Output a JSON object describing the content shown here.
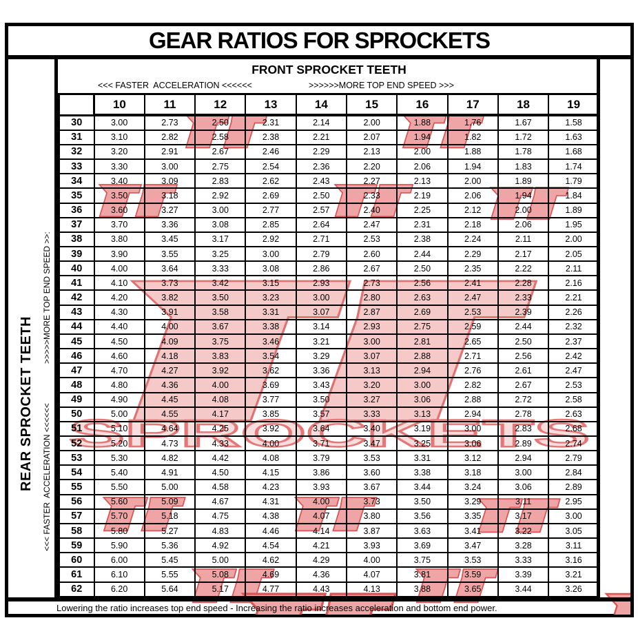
{
  "page": {
    "title": "GEAR RATIOS FOR SPROCKETS",
    "footer_note": "Lowering the ratio increases top end speed - Increasing the ratio increases acceleration and bottom end power."
  },
  "top_header": {
    "label": "FRONT SPROCKET TEETH",
    "acceleration_label": "<<< FASTER  ACCELERATION <<<<<<",
    "top_speed_label": ">>>>>>MORE TOP END SPEED >>>"
  },
  "left_header": {
    "label": "REAR SPROCKET TEETH",
    "top_speed_label": ">>>>>MORE TOP END SPEED >>:",
    "acceleration_label": "<<< FASTER  ACCELERATION <<<<<<"
  },
  "watermark": {
    "brand_monogram": "JT",
    "brand_text": "SPROCKETS",
    "light_fill": "#f6c9c9",
    "light_stroke": "#e07272",
    "accent_fill": "#efa5a5",
    "accent_stroke": "#da5454",
    "text_fill": "#f9dcdc",
    "text_stroke": "#e47777"
  },
  "chart_data": {
    "type": "table",
    "title": "GEAR RATIOS FOR SPROCKETS",
    "columns_title": "FRONT SPROCKET TEETH",
    "rows_title": "REAR SPROCKET TEETH",
    "corner_label": "",
    "columns": [
      "10",
      "11",
      "12",
      "13",
      "14",
      "15",
      "16",
      "17",
      "18",
      "19"
    ],
    "rows": [
      {
        "rear": "30",
        "ratios": [
          "3.00",
          "2.73",
          "2.50",
          "2.31",
          "2.14",
          "2.00",
          "1.88",
          "1.76",
          "1.67",
          "1.58"
        ]
      },
      {
        "rear": "31",
        "ratios": [
          "3.10",
          "2.82",
          "2.58",
          "2.38",
          "2.21",
          "2.07",
          "1.94",
          "1.82",
          "1.72",
          "1.63"
        ]
      },
      {
        "rear": "32",
        "ratios": [
          "3.20",
          "2.91",
          "2.67",
          "2.46",
          "2.29",
          "2.13",
          "2.00",
          "1.88",
          "1.78",
          "1.68"
        ]
      },
      {
        "rear": "33",
        "ratios": [
          "3.30",
          "3.00",
          "2.75",
          "2.54",
          "2.36",
          "2.20",
          "2.06",
          "1.94",
          "1.83",
          "1.74"
        ]
      },
      {
        "rear": "34",
        "ratios": [
          "3.40",
          "3.09",
          "2.83",
          "2.62",
          "2.43",
          "2.27",
          "2.13",
          "2.00",
          "1.89",
          "1.79"
        ]
      },
      {
        "rear": "35",
        "ratios": [
          "3.50",
          "3.18",
          "2.92",
          "2.69",
          "2.50",
          "2.33",
          "2.19",
          "2.06",
          "1.94",
          "1.84"
        ]
      },
      {
        "rear": "36",
        "ratios": [
          "3.60",
          "3.27",
          "3.00",
          "2.77",
          "2.57",
          "2.40",
          "2.25",
          "2.12",
          "2.00",
          "1.89"
        ]
      },
      {
        "rear": "37",
        "ratios": [
          "3.70",
          "3.36",
          "3.08",
          "2.85",
          "2.64",
          "2.47",
          "2.31",
          "2.18",
          "2.06",
          "1.95"
        ]
      },
      {
        "rear": "38",
        "ratios": [
          "3.80",
          "3.45",
          "3.17",
          "2.92",
          "2.71",
          "2.53",
          "2.38",
          "2.24",
          "2.11",
          "2.00"
        ]
      },
      {
        "rear": "39",
        "ratios": [
          "3.90",
          "3.55",
          "3.25",
          "3.00",
          "2.79",
          "2.60",
          "2.44",
          "2.29",
          "2.17",
          "2.05"
        ]
      },
      {
        "rear": "40",
        "ratios": [
          "4.00",
          "3.64",
          "3.33",
          "3.08",
          "2.86",
          "2.67",
          "2.50",
          "2.35",
          "2.22",
          "2.11"
        ]
      },
      {
        "rear": "41",
        "ratios": [
          "4.10",
          "3.73",
          "3.42",
          "3.15",
          "2.93",
          "2.73",
          "2.56",
          "2.41",
          "2.28",
          "2.16"
        ]
      },
      {
        "rear": "42",
        "ratios": [
          "4.20",
          "3.82",
          "3.50",
          "3.23",
          "3.00",
          "2.80",
          "2.63",
          "2.47",
          "2.33",
          "2.21"
        ]
      },
      {
        "rear": "43",
        "ratios": [
          "4.30",
          "3.91",
          "3.58",
          "3.31",
          "3.07",
          "2.87",
          "2.69",
          "2.53",
          "2.39",
          "2.26"
        ]
      },
      {
        "rear": "44",
        "ratios": [
          "4.40",
          "4.00",
          "3.67",
          "3.38",
          "3.14",
          "2.93",
          "2.75",
          "2.59",
          "2.44",
          "2.32"
        ]
      },
      {
        "rear": "45",
        "ratios": [
          "4.50",
          "4.09",
          "3.75",
          "3.46",
          "3.21",
          "3.00",
          "2.81",
          "2.65",
          "2.50",
          "2.37"
        ]
      },
      {
        "rear": "46",
        "ratios": [
          "4.60",
          "4.18",
          "3.83",
          "3.54",
          "3.29",
          "3.07",
          "2.88",
          "2.71",
          "2.56",
          "2.42"
        ]
      },
      {
        "rear": "47",
        "ratios": [
          "4.70",
          "4.27",
          "3.92",
          "3.62",
          "3.36",
          "3.13",
          "2.94",
          "2.76",
          "2.61",
          "2.47"
        ]
      },
      {
        "rear": "48",
        "ratios": [
          "4.80",
          "4.36",
          "4.00",
          "3.69",
          "3.43",
          "3.20",
          "3.00",
          "2.82",
          "2.67",
          "2.53"
        ]
      },
      {
        "rear": "49",
        "ratios": [
          "4.90",
          "4.45",
          "4.08",
          "3.77",
          "3.50",
          "3.27",
          "3.06",
          "2.88",
          "2.72",
          "2.58"
        ]
      },
      {
        "rear": "50",
        "ratios": [
          "5.00",
          "4.55",
          "4.17",
          "3.85",
          "3.57",
          "3.33",
          "3.13",
          "2.94",
          "2.78",
          "2.63"
        ]
      },
      {
        "rear": "51",
        "ratios": [
          "5.10",
          "4.64",
          "4.25",
          "3.92",
          "3.64",
          "3.40",
          "3.19",
          "3.00",
          "2.83",
          "2.68"
        ]
      },
      {
        "rear": "52",
        "ratios": [
          "5.20",
          "4.73",
          "4.33",
          "4.00",
          "3.71",
          "3.47",
          "3.25",
          "3.06",
          "2.89",
          "2.74"
        ]
      },
      {
        "rear": "53",
        "ratios": [
          "5.30",
          "4.82",
          "4.42",
          "4.08",
          "3.79",
          "3.53",
          "3.31",
          "3.12",
          "2.94",
          "2.79"
        ]
      },
      {
        "rear": "54",
        "ratios": [
          "5.40",
          "4.91",
          "4.50",
          "4.15",
          "3.86",
          "3.60",
          "3.38",
          "3.18",
          "3.00",
          "2.84"
        ]
      },
      {
        "rear": "55",
        "ratios": [
          "5.50",
          "5.00",
          "4.58",
          "4.23",
          "3.93",
          "3.67",
          "3.44",
          "3.24",
          "3.06",
          "2.89"
        ]
      },
      {
        "rear": "56",
        "ratios": [
          "5.60",
          "5.09",
          "4.67",
          "4.31",
          "4.00",
          "3.73",
          "3.50",
          "3.29",
          "3.11",
          "2.95"
        ]
      },
      {
        "rear": "57",
        "ratios": [
          "5.70",
          "5.18",
          "4.75",
          "4.38",
          "4.07",
          "3.80",
          "3.56",
          "3.35",
          "3.17",
          "3.00"
        ]
      },
      {
        "rear": "58",
        "ratios": [
          "5.80",
          "5.27",
          "4.83",
          "4.46",
          "4.14",
          "3.87",
          "3.63",
          "3.41",
          "3.22",
          "3.05"
        ]
      },
      {
        "rear": "59",
        "ratios": [
          "5.90",
          "5.36",
          "4.92",
          "4.54",
          "4.21",
          "3.93",
          "3.69",
          "3.47",
          "3.28",
          "3.11"
        ]
      },
      {
        "rear": "60",
        "ratios": [
          "6.00",
          "5.45",
          "5.00",
          "4.62",
          "4.29",
          "4.00",
          "3.75",
          "3.53",
          "3.33",
          "3.16"
        ]
      },
      {
        "rear": "61",
        "ratios": [
          "6.10",
          "5.55",
          "5.08",
          "4.69",
          "4.36",
          "4.07",
          "3.81",
          "3.59",
          "3.39",
          "3.21"
        ]
      },
      {
        "rear": "62",
        "ratios": [
          "6.20",
          "5.64",
          "5.17",
          "4.77",
          "4.43",
          "4.13",
          "3.88",
          "3.65",
          "3.44",
          "3.26"
        ]
      }
    ]
  }
}
